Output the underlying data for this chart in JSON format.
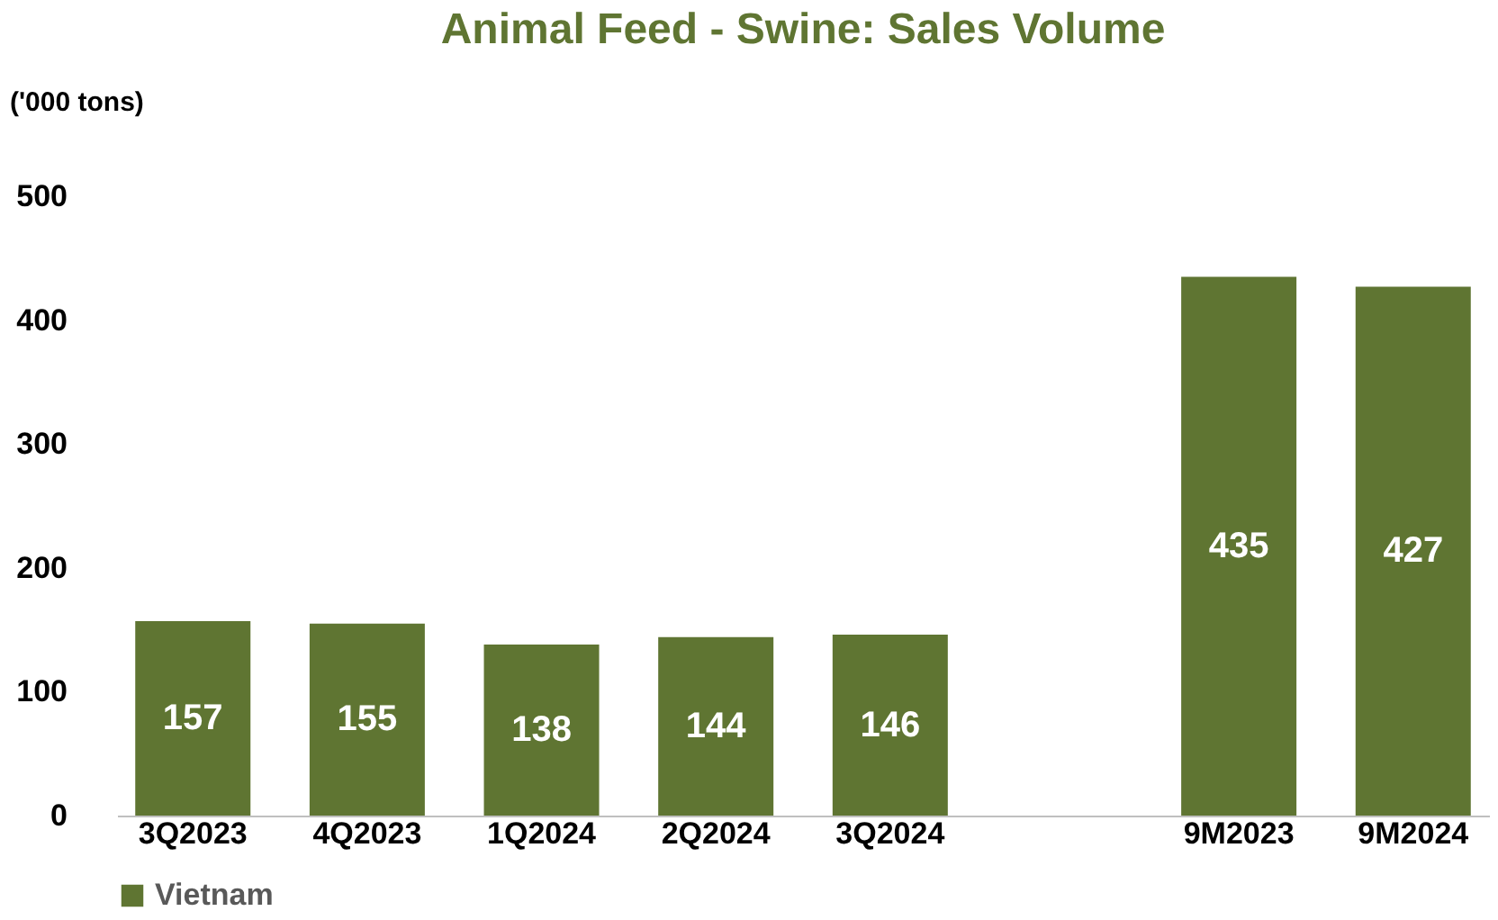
{
  "chart_data": {
    "type": "bar",
    "title": "Animal Feed - Swine: Sales Volume",
    "ylabel": "('000 tons)",
    "categories": [
      "3Q2023",
      "4Q2023",
      "1Q2024",
      "2Q2024",
      "3Q2024",
      null,
      "9M2023",
      "9M2024"
    ],
    "series": [
      {
        "name": "Vietnam",
        "color": "#5f7532",
        "values": [
          157,
          155,
          138,
          144,
          146,
          null,
          435,
          427
        ]
      }
    ],
    "ylim": [
      0,
      500
    ],
    "yticks": [
      0,
      100,
      200,
      300,
      400,
      500
    ],
    "grid": false,
    "legend": "bottom",
    "data_labels": true
  }
}
